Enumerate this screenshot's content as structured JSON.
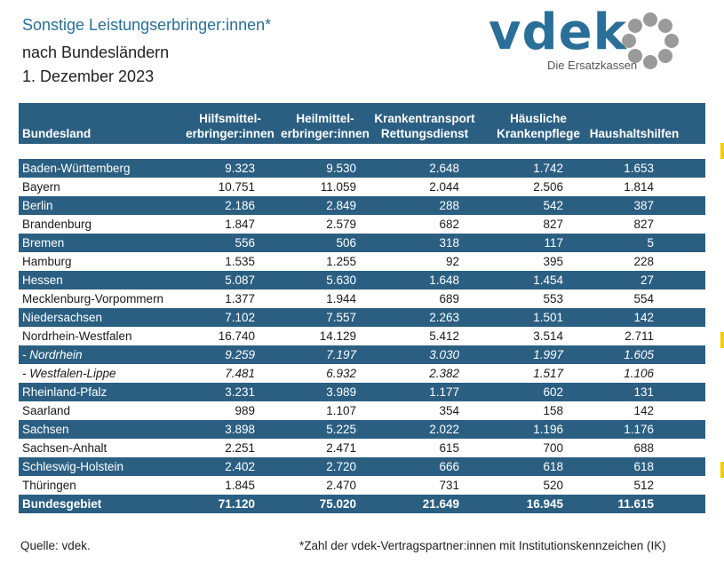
{
  "header": {
    "title": "Sonstige Leistungserbringer:innen*",
    "subtitle": "nach Bundesländern",
    "date": "1. Dezember 2023"
  },
  "logo": {
    "text": "vdek",
    "subtext": "Die Ersatzkassen",
    "brand_color": "#2a6f97",
    "ring_color": "#9a9a9a"
  },
  "table": {
    "columns": [
      [
        "Bundesland"
      ],
      [
        "Hilfsmittel-",
        "erbringer:innen"
      ],
      [
        "Heilmittel-",
        "erbringer:innen"
      ],
      [
        "Krankentransport",
        "Rettungsdienst"
      ],
      [
        "Häusliche",
        "Krankenpflege"
      ],
      [
        "Haushaltshilfen"
      ]
    ],
    "rows": [
      {
        "name": "Baden-Württemberg",
        "values": [
          "9.323",
          "9.530",
          "2.648",
          "1.742",
          "1.653"
        ],
        "style": "dark"
      },
      {
        "name": "Bayern",
        "values": [
          "10.751",
          "11.059",
          "2.044",
          "2.506",
          "1.814"
        ],
        "style": "light"
      },
      {
        "name": "Berlin",
        "values": [
          "2.186",
          "2.849",
          "288",
          "542",
          "387"
        ],
        "style": "dark"
      },
      {
        "name": "Brandenburg",
        "values": [
          "1.847",
          "2.579",
          "682",
          "827",
          "827"
        ],
        "style": "light"
      },
      {
        "name": "Bremen",
        "values": [
          "556",
          "506",
          "318",
          "117",
          "5"
        ],
        "style": "dark"
      },
      {
        "name": "Hamburg",
        "values": [
          "1.535",
          "1.255",
          "92",
          "395",
          "228"
        ],
        "style": "light"
      },
      {
        "name": "Hessen",
        "values": [
          "5.087",
          "5.630",
          "1.648",
          "1.454",
          "27"
        ],
        "style": "dark"
      },
      {
        "name": "Mecklenburg-Vorpommern",
        "values": [
          "1.377",
          "1.944",
          "689",
          "553",
          "554"
        ],
        "style": "light"
      },
      {
        "name": "Niedersachsen",
        "values": [
          "7.102",
          "7.557",
          "2.263",
          "1.501",
          "142"
        ],
        "style": "dark"
      },
      {
        "name": "Nordrhein-Westfalen",
        "values": [
          "16.740",
          "14.129",
          "5.412",
          "3.514",
          "2.711"
        ],
        "style": "light"
      },
      {
        "name": "- Nordrhein",
        "values": [
          "9.259",
          "7.197",
          "3.030",
          "1.997",
          "1.605"
        ],
        "style": "dark italic"
      },
      {
        "name": "- Westfalen-Lippe",
        "values": [
          "7.481",
          "6.932",
          "2.382",
          "1.517",
          "1.106"
        ],
        "style": "light italic"
      },
      {
        "name": "Rheinland-Pfalz",
        "values": [
          "3.231",
          "3.989",
          "1.177",
          "602",
          "131"
        ],
        "style": "dark"
      },
      {
        "name": "Saarland",
        "values": [
          "989",
          "1.107",
          "354",
          "158",
          "142"
        ],
        "style": "light"
      },
      {
        "name": "Sachsen",
        "values": [
          "3.898",
          "5.225",
          "2.022",
          "1.196",
          "1.176"
        ],
        "style": "dark"
      },
      {
        "name": "Sachsen-Anhalt",
        "values": [
          "2.251",
          "2.471",
          "615",
          "700",
          "688"
        ],
        "style": "light"
      },
      {
        "name": "Schleswig-Holstein",
        "values": [
          "2.402",
          "2.720",
          "666",
          "618",
          "618"
        ],
        "style": "dark"
      },
      {
        "name": "Thüringen",
        "values": [
          "1.845",
          "2.470",
          "731",
          "520",
          "512"
        ],
        "style": "light"
      },
      {
        "name": "Bundesgebiet",
        "values": [
          "71.120",
          "75.020",
          "21.649",
          "16.945",
          "11.615"
        ],
        "style": "dark total"
      }
    ]
  },
  "footer": {
    "source": "Quelle: vdek.",
    "note": "*Zahl der vdek-Vertragspartner:innen mit Institutionskennzeichen (IK)"
  },
  "colors": {
    "header_bg": "#2b5f82",
    "accent": "#f0d000"
  }
}
